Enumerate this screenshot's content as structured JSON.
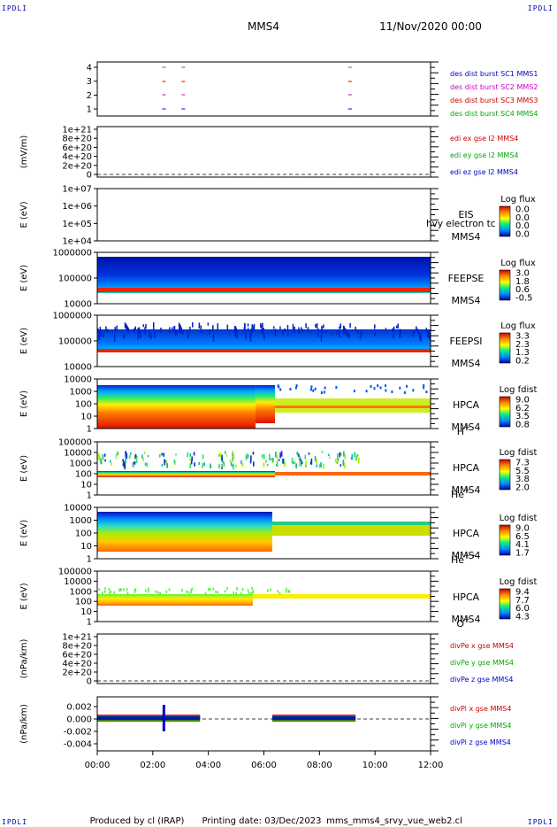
{
  "header": {
    "corner_label": "IPDLI",
    "spacecraft": "MMS4",
    "date_time": "11/Nov/2020 00:00"
  },
  "footer": {
    "produced_by": "Produced by cl (IRAP)",
    "printing_date": "Printing date: 03/Dec/2023",
    "script_name": "mms_mms4_srvy_vue_web2.cl"
  },
  "chart_data": {
    "type": "spectrogram",
    "x_axis": {
      "ticks": [
        "00:00",
        "02:00",
        "04:00",
        "06:00",
        "08:00",
        "10:00",
        "12:00"
      ],
      "range_hours": [
        0,
        12
      ]
    },
    "panels": [
      {
        "id": "burst",
        "ylabel": "",
        "y_ticks": [
          "4",
          "3",
          "2",
          "1"
        ],
        "legend": [
          {
            "text": "des dist burst SC1 MMS1",
            "color": "#0000cc"
          },
          {
            "text": "des dist burst SC2 MMS2",
            "color": "#cc00cc"
          },
          {
            "text": "des dist burst SC3 MMS3",
            "color": "#cc0000"
          },
          {
            "text": "des dist burst SC4 MMS4",
            "color": "#00aa00"
          }
        ],
        "burst_marks": [
          {
            "level": 4,
            "times": [
              2.4,
              3.1,
              9.1
            ],
            "color": "#00aa00"
          },
          {
            "level": 3,
            "times": [
              2.4,
              3.1,
              9.1
            ],
            "color": "#cc0000"
          },
          {
            "level": 2,
            "times": [
              2.4,
              3.1,
              9.1
            ],
            "color": "#cc00cc"
          },
          {
            "level": 1,
            "times": [
              2.4,
              3.1,
              9.1
            ],
            "color": "#0000cc"
          }
        ]
      },
      {
        "id": "edi",
        "ylabel": "(mV/m)",
        "y_ticks": [
          "1e+21",
          "8e+20",
          "6e+20",
          "4e+20",
          "2e+20",
          "0"
        ],
        "legend": [
          {
            "text": "edi ex gse l2 MMS4",
            "color": "#cc0000"
          },
          {
            "text": "edi ey gse l2 MMS4",
            "color": "#00aa00"
          },
          {
            "text": "edi ez gse l2 MMS4",
            "color": "#0000cc"
          }
        ]
      },
      {
        "id": "eis",
        "ylabel": "E (eV)",
        "y_ticks": [
          "1e+07",
          "1e+06",
          "1e+05",
          "1e+04"
        ],
        "label_lines": [
          "EIS",
          "MMS4"
        ],
        "overlay_text": "hvy electron tc",
        "colorbar": {
          "title": "Log flux",
          "ticks": [
            "0.0",
            "0.0",
            "0.0",
            "0.0"
          ]
        }
      },
      {
        "id": "feepse",
        "ylabel": "E (eV)",
        "y_ticks": [
          "1000000",
          "100000",
          "10000"
        ],
        "label_lines": [
          "FEEPSE",
          "MMS4"
        ],
        "colorbar": {
          "title": "Log flux",
          "ticks": [
            "3.0",
            "1.8",
            "0.6",
            "-0.5"
          ]
        }
      },
      {
        "id": "feepsi",
        "ylabel": "E (eV)",
        "y_ticks": [
          "1000000",
          "100000",
          "10000"
        ],
        "label_lines": [
          "FEEPSI",
          "MMS4"
        ],
        "colorbar": {
          "title": "Log flux",
          "ticks": [
            "3.3",
            "2.3",
            "1.3",
            "0.2"
          ]
        }
      },
      {
        "id": "hpca_h",
        "ylabel": "E (eV)",
        "y_ticks": [
          "10000",
          "1000",
          "100",
          "10",
          "1"
        ],
        "label_lines": [
          "HPCA",
          "MMS4"
        ],
        "species": "H",
        "species_sup": "+",
        "colorbar": {
          "title": "Log fdist",
          "ticks": [
            "9.0",
            "6.2",
            "3.5",
            "0.8"
          ]
        }
      },
      {
        "id": "hpca_he",
        "ylabel": "E (eV)",
        "y_ticks": [
          "100000",
          "10000",
          "1000",
          "100",
          "10",
          "1"
        ],
        "label_lines": [
          "HPCA",
          "MMS4"
        ],
        "species": "He",
        "species_sup": "+",
        "colorbar": {
          "title": "Log fdist",
          "ticks": [
            "7.3",
            "5.5",
            "3.8",
            "2.0"
          ]
        }
      },
      {
        "id": "hpca_hepp",
        "ylabel": "E (eV)",
        "y_ticks": [
          "10000",
          "1000",
          "100",
          "10",
          "1"
        ],
        "label_lines": [
          "HPCA",
          "MMS4"
        ],
        "species": "He",
        "species_sup": "++",
        "colorbar": {
          "title": "Log fdist",
          "ticks": [
            "9.0",
            "6.5",
            "4.1",
            "1.7"
          ]
        }
      },
      {
        "id": "hpca_o",
        "ylabel": "E (eV)",
        "y_ticks": [
          "100000",
          "10000",
          "1000",
          "100",
          "10",
          "1"
        ],
        "label_lines": [
          "HPCA",
          "MMS4"
        ],
        "species": "O",
        "species_sup": "+",
        "colorbar": {
          "title": "Log fdist",
          "ticks": [
            "9.4",
            "7.7",
            "6.0",
            "4.3"
          ]
        }
      },
      {
        "id": "divpe",
        "ylabel": "(nPa/km)",
        "y_ticks": [
          "1e+21",
          "8e+20",
          "6e+20",
          "4e+20",
          "2e+20",
          "0"
        ],
        "legend": [
          {
            "text": "divPe x gse MMS4",
            "color": "#cc0000"
          },
          {
            "text": "divPe y gse MMS4",
            "color": "#00aa00"
          },
          {
            "text": "divPe z gse MMS4",
            "color": "#0000cc"
          }
        ]
      },
      {
        "id": "divpi",
        "ylabel": "(nPa/km)",
        "y_ticks": [
          "0.002",
          "0.000",
          "-0.002",
          "-0.004"
        ],
        "legend": [
          {
            "text": "divPi x gse MMS4",
            "color": "#cc0000"
          },
          {
            "text": "divPi y gse MMS4",
            "color": "#00aa00"
          },
          {
            "text": "divPi z gse MMS4",
            "color": "#0000cc"
          }
        ],
        "data_segments_hours": [
          [
            0.0,
            3.7
          ],
          [
            6.3,
            9.3
          ]
        ]
      }
    ]
  }
}
